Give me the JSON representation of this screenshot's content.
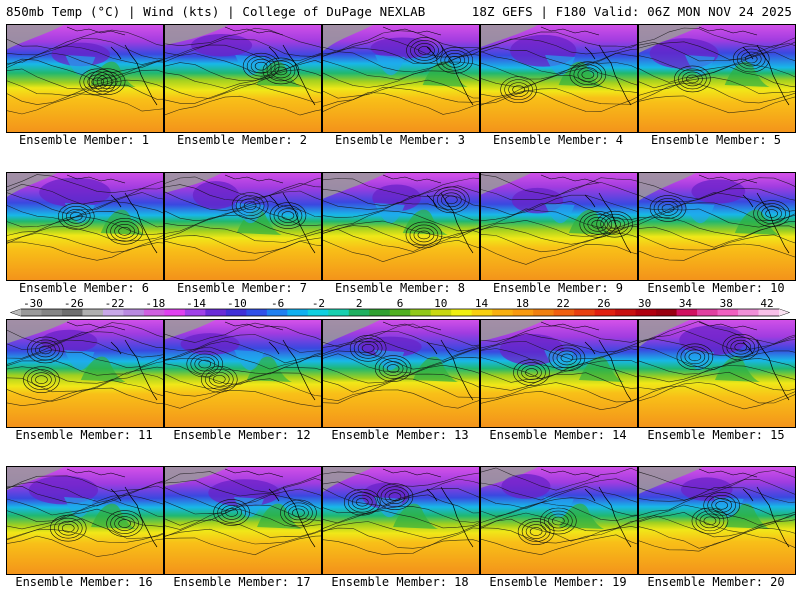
{
  "header": {
    "left": "850mb Temp (°C) | Wind (kts) | College of DuPage NEXLAB",
    "right": "18Z GEFS | F180 Valid: 06Z MON NOV 24 2025"
  },
  "panels": [
    {
      "label": "Ensemble Member: 1"
    },
    {
      "label": "Ensemble Member: 2"
    },
    {
      "label": "Ensemble Member: 3"
    },
    {
      "label": "Ensemble Member: 4"
    },
    {
      "label": "Ensemble Member: 5"
    },
    {
      "label": "Ensemble Member: 6"
    },
    {
      "label": "Ensemble Member: 7"
    },
    {
      "label": "Ensemble Member: 8"
    },
    {
      "label": "Ensemble Member: 9"
    },
    {
      "label": "Ensemble Member: 10"
    },
    {
      "label": "Ensemble Member: 11"
    },
    {
      "label": "Ensemble Member: 12"
    },
    {
      "label": "Ensemble Member: 13"
    },
    {
      "label": "Ensemble Member: 14"
    },
    {
      "label": "Ensemble Member: 15"
    },
    {
      "label": "Ensemble Member: 16"
    },
    {
      "label": "Ensemble Member: 17"
    },
    {
      "label": "Ensemble Member: 18"
    },
    {
      "label": "Ensemble Member: 19"
    },
    {
      "label": "Ensemble Member: 20"
    }
  ],
  "colorbar": {
    "ticks": [
      "-30",
      "-26",
      "-22",
      "-18",
      "-14",
      "-10",
      "-6",
      "-2",
      "2",
      "6",
      "10",
      "14",
      "18",
      "22",
      "26",
      "30",
      "34",
      "38",
      "42"
    ],
    "colors": [
      "#9a9a9a",
      "#858585",
      "#6e6e6e",
      "#b0b0b0",
      "#c8a8e8",
      "#b98ae0",
      "#d060e0",
      "#e040f0",
      "#a040e8",
      "#6a2cd8",
      "#4030d8",
      "#3050e8",
      "#2080f0",
      "#10b0f0",
      "#10d0e0",
      "#18d0b0",
      "#20b060",
      "#30a030",
      "#50b020",
      "#90c818",
      "#c8d810",
      "#f0f010",
      "#f8d010",
      "#f8b010",
      "#f89a10",
      "#f08010",
      "#f06010",
      "#e84010",
      "#e02010",
      "#c81010",
      "#b00010",
      "#980010",
      "#d01060",
      "#e040a0",
      "#f060c0",
      "#f090d8",
      "#f8c0e8"
    ]
  }
}
